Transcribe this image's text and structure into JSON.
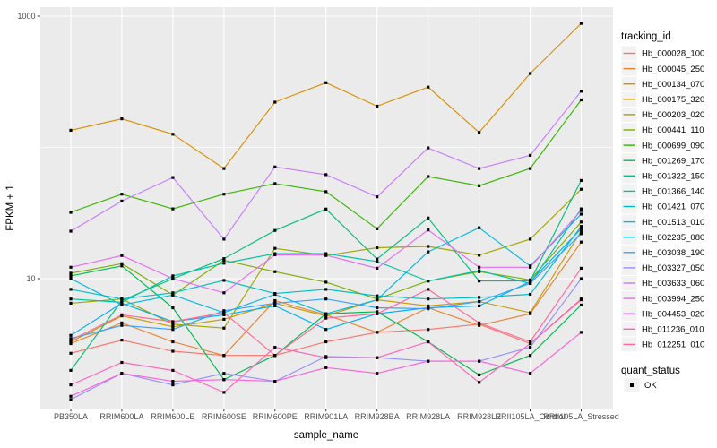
{
  "chart_data": {
    "type": "line",
    "title": "",
    "xlabel": "sample_name",
    "ylabel": "FPKM + 1",
    "y_scale": "log10",
    "y_tick_labels": [
      "10",
      "1000"
    ],
    "y_ticks": [
      10,
      1000
    ],
    "y_minor_gridlines": [
      100
    ],
    "ylim": [
      1.05,
      1200
    ],
    "grid": true,
    "panel_bg": "#EBEBEB",
    "grid_color": "#FFFFFF",
    "tick_label_color": "#4D4D4D",
    "axis_title_color": "#000000",
    "point_color": "#000000",
    "legend_position": "right",
    "legend_title": "tracking_id",
    "legend2_title": "quant_status",
    "legend2_items": [
      {
        "label": "OK",
        "marker": "black-square"
      }
    ],
    "categories": [
      "PB350LA",
      "RRIM600LA",
      "RRIM600LE",
      "RRIM600SE",
      "RRIM600PE",
      "RRIM901LA",
      "RRIM928BA",
      "RRIM928LA",
      "RRIM928LE",
      "RRII105LA_Control",
      "RRII105LA_Stressed"
    ],
    "series": [
      {
        "name": "Hb_000028_100",
        "color": "#F8766D",
        "values": [
          2.7,
          3.4,
          2.8,
          2.6,
          2.6,
          3.3,
          3.9,
          4.1,
          4.5,
          3.2,
          6.9
        ]
      },
      {
        "name": "Hb_000045_250",
        "color": "#EA8331",
        "values": [
          3.2,
          4.6,
          3.3,
          2.6,
          6.8,
          5.3,
          3.9,
          6.0,
          4.4,
          5.4,
          19
        ]
      },
      {
        "name": "Hb_000134_070",
        "color": "#D89000",
        "values": [
          135,
          165,
          126,
          69,
          221,
          311,
          206,
          288,
          130,
          366,
          880
        ]
      },
      {
        "name": "Hb_000175_320",
        "color": "#C49A00",
        "values": [
          3.3,
          5.2,
          4.3,
          4.9,
          6.5,
          5.2,
          6.9,
          6.2,
          6.7,
          5.5,
          23
        ]
      },
      {
        "name": "Hb_000203_020",
        "color": "#A3A500",
        "values": [
          6.5,
          7.0,
          4.5,
          4.2,
          17.0,
          15.0,
          17.2,
          17.6,
          15.1,
          20,
          48
        ]
      },
      {
        "name": "Hb_000441_110",
        "color": "#7CAE00",
        "values": [
          11,
          13,
          7.5,
          13.8,
          11.3,
          9.4,
          7.0,
          9.6,
          11.3,
          9.8,
          27
        ]
      },
      {
        "name": "Hb_000699_090",
        "color": "#39B600",
        "values": [
          32,
          44,
          34,
          44,
          53,
          46,
          24,
          60,
          51,
          69,
          230
        ]
      },
      {
        "name": "Hb_001269_170",
        "color": "#00BB4E",
        "values": [
          10.5,
          12.5,
          6.0,
          1.7,
          2.6,
          5.4,
          5.6,
          3.3,
          1.85,
          2.6,
          6.3
        ]
      },
      {
        "name": "Hb_001322_150",
        "color": "#00BF7D",
        "values": [
          2.0,
          6.8,
          10,
          14.2,
          23.3,
          33.9,
          14.1,
          29,
          9.6,
          9.6,
          56
        ]
      },
      {
        "name": "Hb_001366_140",
        "color": "#00C1A3",
        "values": [
          7.0,
          6.6,
          10.5,
          13.1,
          15.5,
          15.5,
          13.5,
          9.6,
          11.5,
          9.2,
          34
        ]
      },
      {
        "name": "Hb_001421_070",
        "color": "#00BFC4",
        "values": [
          8.3,
          7.0,
          7.8,
          9.7,
          7.7,
          8.3,
          7.4,
          7.0,
          7.2,
          7.6,
          25
        ]
      },
      {
        "name": "Hb_001513_010",
        "color": "#00BAE0",
        "values": [
          10.0,
          6.3,
          7.5,
          5.5,
          7.6,
          5.4,
          6.9,
          16,
          24.4,
          12.5,
          31
        ]
      },
      {
        "name": "Hb_002235_080",
        "color": "#00B0F6",
        "values": [
          3.7,
          6.5,
          4.7,
          5.3,
          6.2,
          4.1,
          5.4,
          6.0,
          6.2,
          9.5,
          24
        ]
      },
      {
        "name": "Hb_003038_190",
        "color": "#35A2FF",
        "values": [
          3.5,
          4.4,
          4.1,
          5.7,
          6.5,
          7.0,
          6.0,
          5.9,
          6.7,
          9.2,
          22
        ]
      },
      {
        "name": "Hb_003327_050",
        "color": "#9590FF",
        "values": [
          1.2,
          1.9,
          1.55,
          1.9,
          1.65,
          2.55,
          2.5,
          2.35,
          2.35,
          3.0,
          10
        ]
      },
      {
        "name": "Hb_003633_060",
        "color": "#C77CFF",
        "values": [
          23,
          39,
          59,
          20,
          71,
          62,
          42,
          99,
          69,
          87,
          268
        ]
      },
      {
        "name": "Hb_003994_250",
        "color": "#E76BF3",
        "values": [
          12.2,
          15.0,
          10.0,
          7.8,
          15.2,
          15.1,
          12.0,
          23.5,
          12.2,
          12.2,
          33
        ]
      },
      {
        "name": "Hb_004453_020",
        "color": "#FA62DB",
        "values": [
          1.27,
          1.9,
          1.65,
          1.7,
          1.65,
          2.1,
          1.9,
          2.35,
          2.35,
          1.9,
          3.9
        ]
      },
      {
        "name": "Hb_011236_010",
        "color": "#FF62BC",
        "values": [
          1.55,
          2.3,
          2.0,
          1.36,
          3.0,
          2.5,
          2.5,
          3.3,
          1.62,
          3.2,
          7.0
        ]
      },
      {
        "name": "Hb_012251_010",
        "color": "#FF6A98",
        "values": [
          3.4,
          5.3,
          4.7,
          5.5,
          2.6,
          5.0,
          5.4,
          8.3,
          4.6,
          3.3,
          12
        ]
      }
    ]
  }
}
